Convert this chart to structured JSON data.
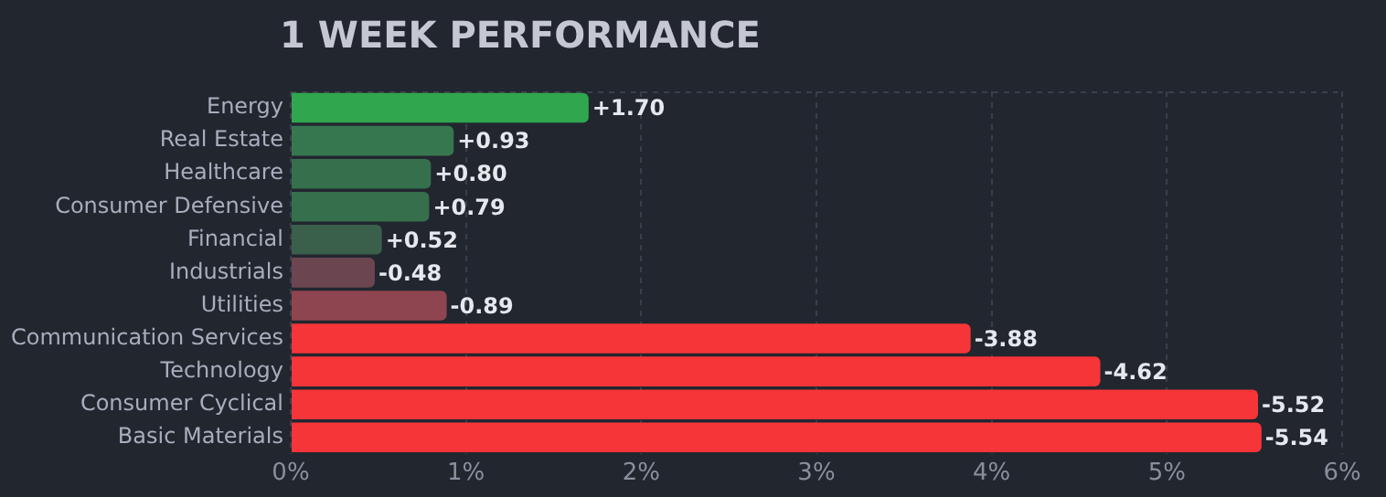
{
  "chart_data": {
    "type": "bar",
    "orientation": "horizontal",
    "title": "1 WEEK PERFORMANCE",
    "categories": [
      "Energy",
      "Real Estate",
      "Healthcare",
      "Consumer Defensive",
      "Financial",
      "Industrials",
      "Utilities",
      "Communication Services",
      "Technology",
      "Consumer Cyclical",
      "Basic Materials"
    ],
    "values": [
      1.7,
      0.93,
      0.8,
      0.79,
      0.52,
      -0.48,
      -0.89,
      -3.88,
      -4.62,
      -5.52,
      -5.54
    ],
    "base": [
      0,
      0,
      0,
      0,
      0,
      0.48,
      0.89,
      3.88,
      4.62,
      5.52,
      5.54
    ],
    "value_labels": [
      "+1.70",
      "+0.93",
      "+0.80",
      "+0.79",
      "+0.52",
      "-0.48",
      "-0.89",
      "-3.88",
      "-4.62",
      "-5.52",
      "-5.54"
    ],
    "colors": [
      "#30a64f",
      "#377750",
      "#356f4c",
      "#356f4c",
      "#3a5f4a",
      "#6b4550",
      "#8e454f",
      "#f63538",
      "#f63538",
      "#f63538",
      "#f63538"
    ],
    "xlim": [
      0,
      6
    ],
    "xticks": [
      {
        "value": 0,
        "label": "0%"
      },
      {
        "value": 1,
        "label": "1%"
      },
      {
        "value": 2,
        "label": "2%"
      },
      {
        "value": 3,
        "label": "3%"
      },
      {
        "value": 4,
        "label": "4%"
      },
      {
        "value": 5,
        "label": "5%"
      },
      {
        "value": 6,
        "label": "6%"
      }
    ],
    "grid": "x"
  }
}
